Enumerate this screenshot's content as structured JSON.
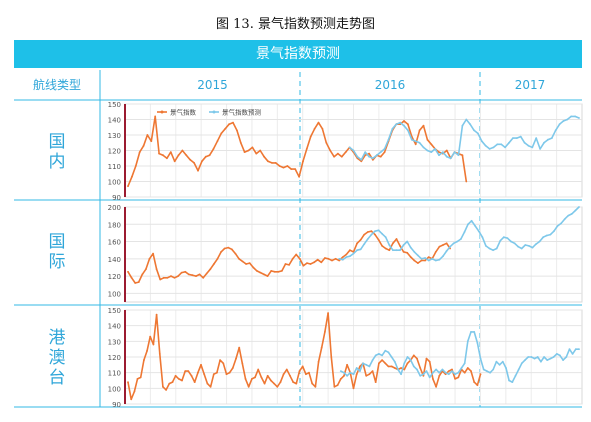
{
  "caption": "图 13. 景气指数预测走势图",
  "banner": "景气指数预测",
  "header": {
    "first_col": "航线类型",
    "years": [
      "2015",
      "2016",
      "2017"
    ]
  },
  "colors": {
    "actual": "#ee7733",
    "forecast": "#7ec8ea",
    "accent": "#1ec0e8",
    "label": "#2fa6d9"
  },
  "chart_data": [
    {
      "type": "line",
      "name": "国内",
      "label_chars": [
        "国",
        "内"
      ],
      "legend": [
        "景气指数",
        "景气指数预测"
      ],
      "ylim": [
        90,
        150
      ],
      "yticks": [
        90,
        100,
        110,
        120,
        130,
        140,
        150
      ],
      "series": [
        {
          "name": "景气指数",
          "x_start": 0,
          "values": [
            97,
            103,
            110,
            119,
            123,
            130,
            126,
            142,
            118,
            117,
            115,
            119,
            113,
            117,
            120,
            117,
            114,
            112,
            107,
            113,
            116,
            117,
            121,
            126,
            131,
            134,
            137,
            138,
            133,
            125,
            119,
            120,
            122,
            118,
            120,
            116,
            113,
            112,
            112,
            110,
            109,
            110,
            108,
            108,
            103,
            113,
            121,
            129,
            134,
            138,
            134,
            125,
            120,
            116,
            118,
            116,
            119,
            122,
            119,
            115,
            113,
            117,
            118,
            114,
            117,
            116,
            119,
            126,
            133,
            137,
            137,
            139,
            137,
            129,
            124,
            133,
            136,
            127,
            124,
            121,
            119,
            118,
            120,
            115,
            119,
            118,
            117,
            100
          ]
        },
        {
          "name": "景气指数预测",
          "x_start": 57,
          "values": [
            122,
            120,
            116,
            114,
            119,
            116,
            115,
            117,
            119,
            121,
            127,
            134,
            137,
            138,
            136,
            133,
            127,
            126,
            125,
            122,
            120,
            119,
            121,
            117,
            119,
            116,
            115,
            119,
            117,
            136,
            140,
            137,
            133,
            131,
            126,
            123,
            121,
            122,
            124,
            124,
            122,
            125,
            128,
            128,
            129,
            125,
            123,
            122,
            128,
            121,
            125,
            127,
            128,
            133,
            137,
            139,
            140,
            142,
            142,
            141
          ]
        }
      ]
    },
    {
      "type": "line",
      "name": "国际",
      "label_chars": [
        "国",
        "际"
      ],
      "ylim": [
        90,
        200
      ],
      "yticks": [
        100,
        120,
        140,
        160,
        180,
        200
      ],
      "series": [
        {
          "name": "景气指数",
          "x_start": 0,
          "values": [
            125,
            118,
            112,
            113,
            122,
            128,
            140,
            146,
            128,
            116,
            118,
            118,
            120,
            118,
            120,
            124,
            125,
            122,
            121,
            120,
            122,
            118,
            123,
            128,
            134,
            140,
            148,
            152,
            153,
            151,
            146,
            140,
            137,
            134,
            135,
            130,
            126,
            124,
            122,
            120,
            126,
            125,
            125,
            126,
            134,
            133,
            140,
            145,
            140,
            132,
            135,
            134,
            136,
            139,
            136,
            141,
            140,
            138,
            140,
            138,
            142,
            145,
            150,
            148,
            158,
            162,
            168,
            171,
            172,
            168,
            162,
            155,
            152,
            150,
            158,
            163,
            155,
            148,
            147,
            142,
            138,
            135,
            138,
            138,
            142,
            140,
            148,
            154,
            156,
            158,
            152
          ]
        },
        {
          "name": "景气指数预测",
          "x_start": 59,
          "values": [
            140,
            139,
            142,
            143,
            146,
            150,
            151,
            157,
            163,
            168,
            172,
            173,
            169,
            165,
            156,
            150,
            150,
            150,
            156,
            160,
            153,
            148,
            144,
            140,
            141,
            138,
            140,
            138,
            139,
            143,
            149,
            154,
            158,
            160,
            163,
            171,
            180,
            184,
            178,
            172,
            165,
            155,
            152,
            150,
            152,
            161,
            165,
            164,
            160,
            158,
            154,
            152,
            156,
            155,
            153,
            157,
            160,
            165,
            167,
            168,
            172,
            178,
            181,
            186,
            190,
            192,
            196,
            200
          ]
        }
      ]
    },
    {
      "type": "line",
      "name": "港澳台",
      "label_chars": [
        "港",
        "澳",
        "台"
      ],
      "ylim": [
        90,
        150
      ],
      "yticks": [
        90,
        100,
        110,
        120,
        130,
        140,
        150
      ],
      "series": [
        {
          "name": "景气指数",
          "x_start": 0,
          "values": [
            104,
            93,
            98,
            106,
            107,
            118,
            124,
            133,
            128,
            147,
            122,
            101,
            99,
            103,
            104,
            108,
            106,
            105,
            111,
            111,
            108,
            104,
            110,
            115,
            109,
            103,
            101,
            109,
            110,
            118,
            116,
            109,
            110,
            113,
            119,
            126,
            116,
            106,
            101,
            106,
            107,
            112,
            107,
            103,
            108,
            105,
            103,
            101,
            104,
            109,
            112,
            108,
            104,
            103,
            111,
            114,
            109,
            110,
            103,
            101,
            117,
            126,
            136,
            148,
            120,
            101,
            102,
            106,
            108,
            115,
            110,
            100,
            109,
            114,
            116,
            108,
            109,
            111,
            104,
            116,
            118,
            116,
            114,
            114,
            113,
            112,
            113,
            112,
            116,
            118,
            121,
            119,
            113,
            108,
            119,
            117,
            106,
            101,
            108,
            111,
            109,
            111,
            112,
            106,
            107,
            112,
            110,
            113,
            111,
            104,
            102,
            109
          ]
        },
        {
          "name": "景气指数预测",
          "x_start": 67,
          "values": [
            111,
            110,
            108,
            110,
            109,
            113,
            111,
            116,
            115,
            114,
            118,
            121,
            122,
            121,
            124,
            123,
            120,
            117,
            112,
            109,
            116,
            120,
            118,
            114,
            112,
            108,
            109,
            111,
            107,
            110,
            112,
            110,
            112,
            110,
            109,
            111,
            109,
            110,
            113,
            116,
            130,
            136,
            136,
            129,
            119,
            112,
            111,
            110,
            112,
            117,
            115,
            117,
            113,
            105,
            104,
            108,
            112,
            116,
            118,
            120,
            120,
            119,
            120,
            117,
            120,
            118,
            119,
            120,
            122,
            121,
            118,
            120,
            125,
            122,
            125,
            125
          ]
        }
      ]
    }
  ]
}
